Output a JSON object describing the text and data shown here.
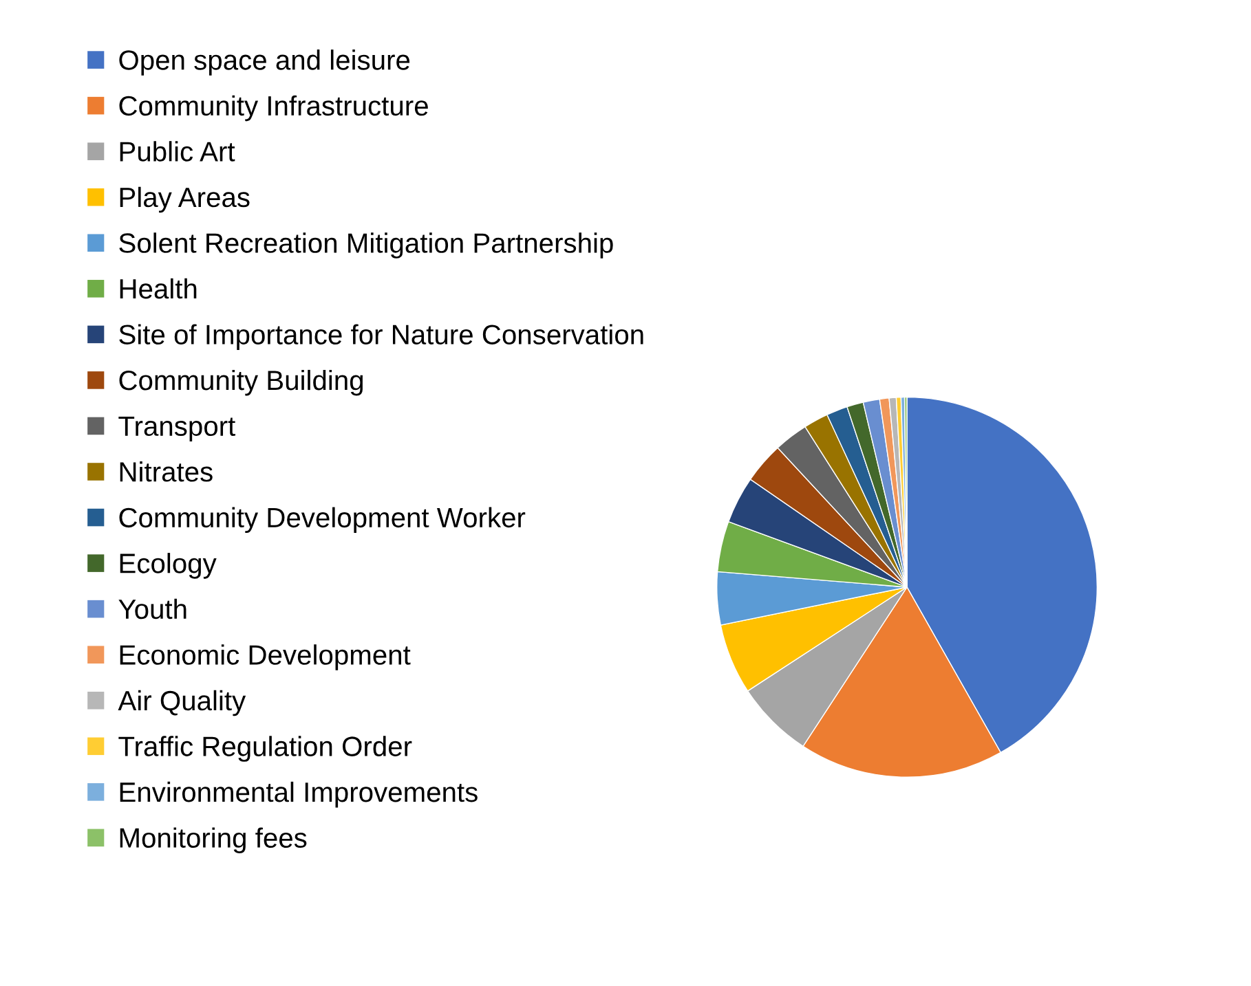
{
  "chart_data": {
    "type": "pie",
    "legend": "left",
    "categories": [
      "Open space and leisure",
      "Community Infrastructure",
      "Public Art",
      "Play Areas",
      "Solent Recreation Mitigation Partnership",
      "Health",
      "Site of Importance for Nature Conservation",
      "Community Building",
      "Transport",
      "Nitrates",
      "Community Development Worker",
      "Ecology",
      "Youth",
      "Economic Development",
      "Air Quality",
      "Traffic Regulation Order",
      "Environmental Improvements",
      "Monitoring fees"
    ],
    "values": [
      41.8,
      17.4,
      6.6,
      6.0,
      4.5,
      4.3,
      4.0,
      3.5,
      2.9,
      2.1,
      1.8,
      1.4,
      1.4,
      0.8,
      0.6,
      0.4,
      0.3,
      0.2
    ],
    "colors": [
      "#4472c4",
      "#ed7d31",
      "#a5a5a5",
      "#ffc000",
      "#5b9bd5",
      "#70ad47",
      "#264478",
      "#9e480e",
      "#636363",
      "#997300",
      "#255e91",
      "#43682b",
      "#698ed0",
      "#f1975a",
      "#b7b7b7",
      "#ffcd33",
      "#7cafdd",
      "#8cc168"
    ]
  }
}
